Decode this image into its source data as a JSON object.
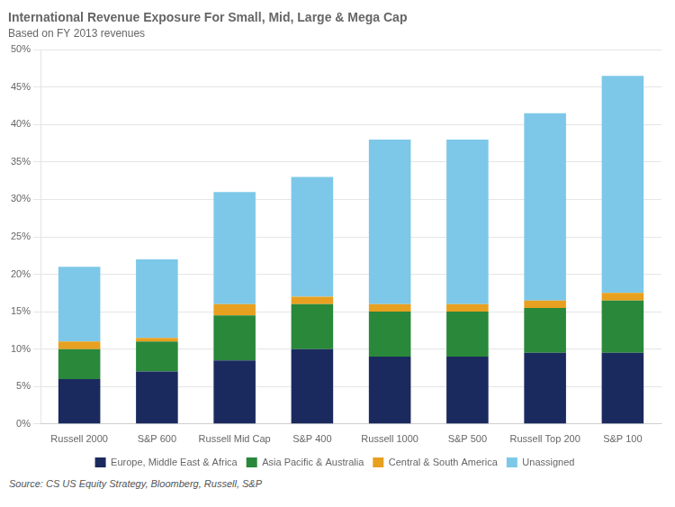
{
  "chart_data": {
    "type": "bar",
    "title": "International Revenue Exposure For Small, Mid, Large & Mega Cap",
    "subtitle": "Based on FY 2013 revenues",
    "source": "Source: CS US Equity Strategy, Bloomberg, Russell, S&P",
    "categories": [
      "Russell 2000",
      "S&P 600",
      "Russell Mid Cap",
      "S&P 400",
      "Russell 1000",
      "S&P 500",
      "Russell Top 200",
      "S&P 100"
    ],
    "series": [
      {
        "name": "Europe, Middle East & Africa",
        "color": "#1b2a5e",
        "values": [
          6.0,
          7.0,
          8.5,
          10.0,
          9.0,
          9.0,
          9.5,
          9.5
        ]
      },
      {
        "name": "Asia Pacific & Australia",
        "color": "#29883a",
        "values": [
          4.0,
          4.0,
          6.0,
          6.0,
          6.0,
          6.0,
          6.0,
          7.0
        ]
      },
      {
        "name": "Central & South America",
        "color": "#e8a020",
        "values": [
          1.0,
          0.5,
          1.5,
          1.0,
          1.0,
          1.0,
          1.0,
          1.0
        ]
      },
      {
        "name": "Unassigned",
        "color": "#7dc8e8",
        "values": [
          10.0,
          10.5,
          15.0,
          16.0,
          22.0,
          22.0,
          25.0,
          29.0
        ]
      }
    ],
    "stacked": true,
    "ylim": [
      0,
      50
    ],
    "yticks": [
      {
        "value": 0,
        "label": "0%"
      },
      {
        "value": 5,
        "label": "5%"
      },
      {
        "value": 10,
        "label": "10%"
      },
      {
        "value": 15,
        "label": "15%"
      },
      {
        "value": 20,
        "label": "20%"
      },
      {
        "value": 25,
        "label": "25%"
      },
      {
        "value": 30,
        "label": "30%"
      },
      {
        "value": 35,
        "label": "35%"
      },
      {
        "value": 40,
        "label": "40%"
      },
      {
        "value": 45,
        "label": "45%"
      },
      {
        "value": 50,
        "label": "50%"
      }
    ],
    "grid": true,
    "legend": "bottom"
  }
}
